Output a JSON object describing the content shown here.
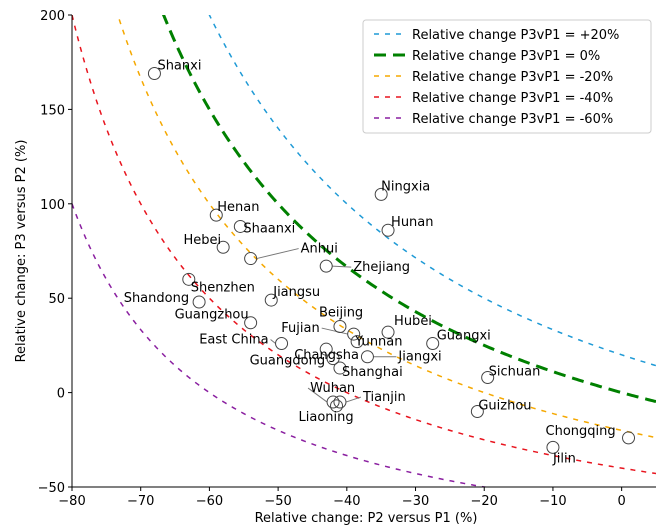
{
  "chart_data": {
    "type": "scatter",
    "xlabel": "Relative change: P2 versus P1 (%)",
    "ylabel": "Relative change: P3 versus P2 (%)",
    "xlim": [
      -80,
      5
    ],
    "ylim": [
      -50,
      200
    ],
    "xticks": [
      -80,
      -70,
      -60,
      -50,
      -40,
      -30,
      -20,
      -10,
      0
    ],
    "yticks": [
      -50,
      0,
      50,
      100,
      150,
      200
    ],
    "grid": false,
    "legend_position": "top-right",
    "curves": [
      {
        "name": "Relative change P3vP1 = +20%",
        "change": 20,
        "color": "#1f9ad6",
        "style": "dashed"
      },
      {
        "name": "Relative change P3vP1 = 0%",
        "change": 0,
        "color": "#008000",
        "style": "dashed-thick"
      },
      {
        "name": "Relative change P3vP1 = -20%",
        "change": -20,
        "color": "#f5a800",
        "style": "dashed"
      },
      {
        "name": "Relative change P3vP1 = -40%",
        "change": -40,
        "color": "#e8141e",
        "style": "dashed"
      },
      {
        "name": "Relative change P3vP1 = -60%",
        "change": -60,
        "color": "#8a1fa0",
        "style": "dashed"
      }
    ],
    "points": [
      {
        "label": "Shanxi",
        "x": -68,
        "y": 169
      },
      {
        "label": "Ningxia",
        "x": -35,
        "y": 105
      },
      {
        "label": "Hunan",
        "x": -34,
        "y": 86
      },
      {
        "label": "Henan",
        "x": -59,
        "y": 94
      },
      {
        "label": "Shaanxi",
        "x": -55.5,
        "y": 88
      },
      {
        "label": "Hebei",
        "x": -58,
        "y": 77
      },
      {
        "label": "Anhui",
        "x": -54,
        "y": 71
      },
      {
        "label": "Zhejiang",
        "x": -43,
        "y": 67
      },
      {
        "label": "Shenzhen",
        "x": -63,
        "y": 60
      },
      {
        "label": "Shandong",
        "x": -61.5,
        "y": 48
      },
      {
        "label": "Jiangsu",
        "x": -51,
        "y": 49
      },
      {
        "label": "Guangzhou",
        "x": -54,
        "y": 37
      },
      {
        "label": "Beijing",
        "x": -41,
        "y": 35
      },
      {
        "label": "Hubei",
        "x": -34,
        "y": 32
      },
      {
        "label": "Fujian",
        "x": -39,
        "y": 31
      },
      {
        "label": "Guangxi",
        "x": -27.5,
        "y": 26
      },
      {
        "label": "East China",
        "x": -49.5,
        "y": 26
      },
      {
        "label": "Yunnan",
        "x": -38.5,
        "y": 27
      },
      {
        "label": "Changsha",
        "x": -43,
        "y": 23
      },
      {
        "label": "Jiangxi",
        "x": -37,
        "y": 19
      },
      {
        "label": "Guangdong",
        "x": -42,
        "y": 18
      },
      {
        "label": "Shanghai",
        "x": -41,
        "y": 13
      },
      {
        "label": "Sichuan",
        "x": -19.5,
        "y": 8
      },
      {
        "label": "Wuhan",
        "x": -42,
        "y": -5
      },
      {
        "label": "Tianjin",
        "x": -41,
        "y": -5
      },
      {
        "label": "Liaoning",
        "x": -41.5,
        "y": -7
      },
      {
        "label": "Guizhou",
        "x": -21,
        "y": -10
      },
      {
        "label": "Chongqing",
        "x": 1,
        "y": -24
      },
      {
        "label": "Jilin",
        "x": -10,
        "y": -29
      }
    ]
  }
}
